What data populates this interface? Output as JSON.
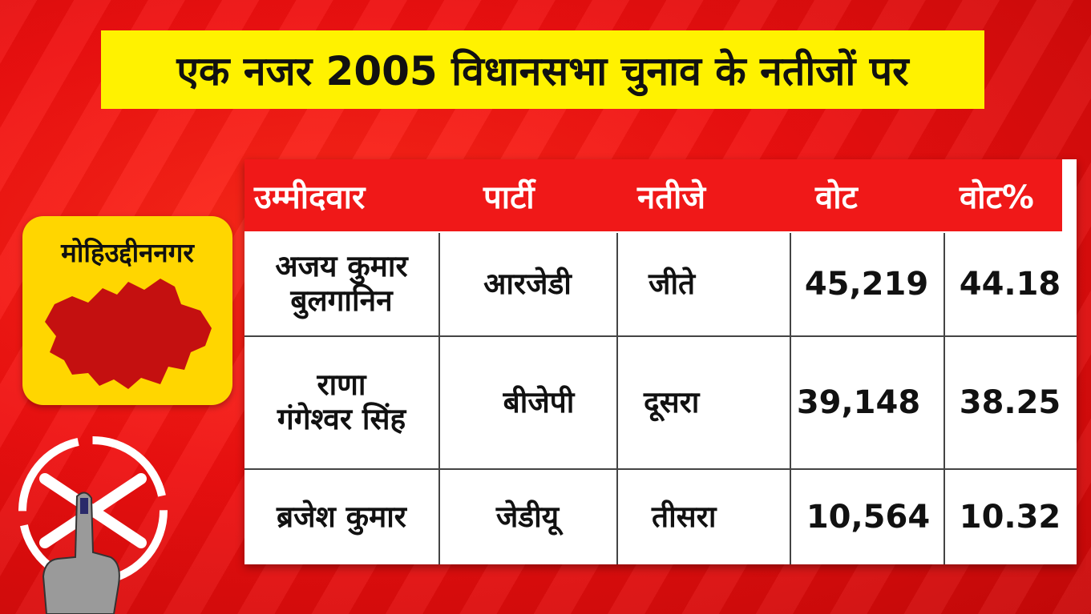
{
  "title": "एक नजर 2005 विधानसभा चुनाव के नतीजों पर",
  "region": {
    "name": "मोहिउद्दीननगर"
  },
  "table": {
    "headers": [
      "उम्मीदवार",
      "पार्टी",
      "नतीजे",
      "वोट",
      "वोट%"
    ],
    "rows": [
      {
        "candidate_line1": "अजय कुमार",
        "candidate_line2": "बुलगानिन",
        "party": "आरजेडी",
        "result": "जीते",
        "votes": "45,219",
        "vote_pct": "44.18"
      },
      {
        "candidate_line1": "राणा",
        "candidate_line2": "गंगेश्वर सिंह",
        "party": "बीजेपी",
        "result": "दूसरा",
        "votes": "39,148",
        "vote_pct": "38.25"
      },
      {
        "candidate_line1": "ब्रजेश कुमार",
        "candidate_line2": "",
        "party": "जेडीयू",
        "result": "तीसरा",
        "votes": "10,564",
        "vote_pct": "10.32"
      }
    ]
  },
  "colors": {
    "background": "#ee1010",
    "banner": "#fff200",
    "card": "#ffd600",
    "header": "#f01818",
    "map": "#c41010"
  }
}
